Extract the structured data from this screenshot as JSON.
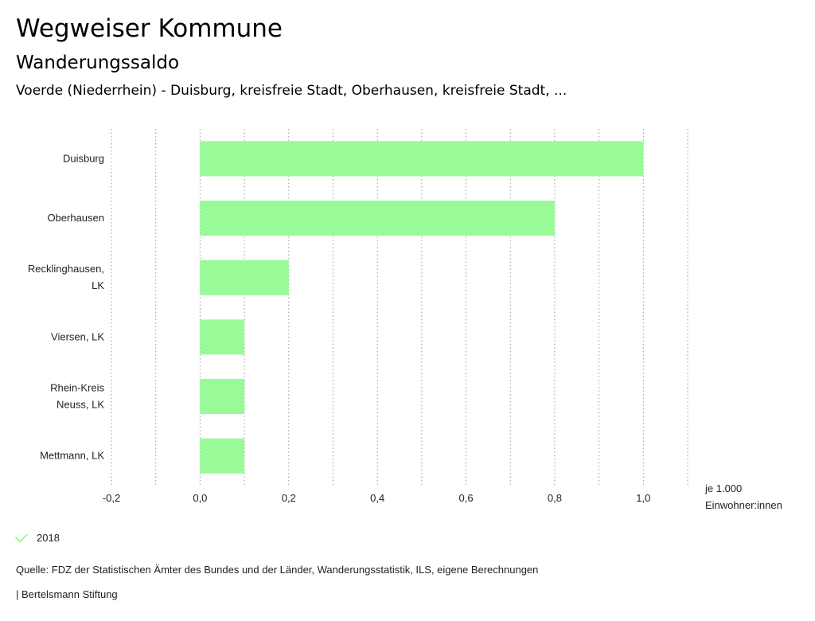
{
  "header": {
    "app_title": "Wegweiser Kommune",
    "indicator": "Wanderungssaldo",
    "regions": "Voerde (Niederrhein) - Duisburg, kreisfreie Stadt, Oberhausen, kreisfreie Stadt, ..."
  },
  "chart_data": {
    "type": "bar",
    "orientation": "horizontal",
    "categories": [
      [
        "Duisburg"
      ],
      [
        "Oberhausen"
      ],
      [
        "Recklinghausen,",
        "LK"
      ],
      [
        "Viersen, LK"
      ],
      [
        "Rhein-Kreis",
        "Neuss, LK"
      ],
      [
        "Mettmann, LK"
      ]
    ],
    "series": [
      {
        "name": "2018",
        "values": [
          1.0,
          0.8,
          0.2,
          0.1,
          0.1,
          0.1
        ]
      }
    ],
    "xlim": [
      -0.2,
      1.1
    ],
    "xticks": [
      -0.2,
      0.0,
      0.2,
      0.4,
      0.6,
      0.8,
      1.0
    ],
    "xtick_labels": [
      "-0,2",
      "0,0",
      "0,2",
      "0,4",
      "0,6",
      "0,8",
      "1,0"
    ],
    "grid_lines": [
      -0.2,
      -0.1,
      0.0,
      0.1,
      0.2,
      0.3,
      0.4,
      0.5,
      0.6,
      0.7,
      0.8,
      0.9,
      1.0,
      1.1
    ],
    "xlabel": [
      "je 1.000",
      "Einwohner:innen"
    ],
    "bar_color": "#98fb98",
    "grid": true
  },
  "legend": {
    "label": "2018",
    "color": "#98fb98"
  },
  "footer": {
    "source": "Quelle: FDZ der Statistischen Ämter des Bundes und der Länder, Wanderungsstatistik, ILS, eigene Berechnungen",
    "credit": "| Bertelsmann Stiftung"
  }
}
